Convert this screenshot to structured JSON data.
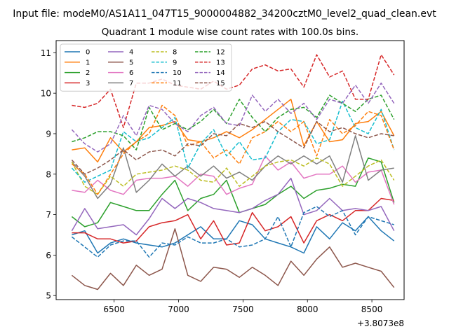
{
  "chart_data": {
    "type": "line",
    "suptitle": "Input file: modeM0/AS1A11_047T15_9000004882_34200cztM0_level2_quad_clean.evt",
    "title": "Quadrant 1 module wise count rates with 100.0s bins.",
    "xlabel": "",
    "ylabel": "",
    "x_offset_label": "+3.8073e8",
    "xlim": [
      6050,
      8750
    ],
    "ylim": [
      4.9,
      11.3
    ],
    "xticks": [
      6500,
      7000,
      7500,
      8000,
      8500
    ],
    "yticks": [
      5,
      6,
      7,
      8,
      9,
      10,
      11
    ],
    "grid": false,
    "legend_position": "top-left",
    "legend_columns": 4,
    "x": [
      6172,
      6272,
      6372,
      6472,
      6572,
      6672,
      6772,
      6872,
      6972,
      7072,
      7172,
      7272,
      7372,
      7472,
      7572,
      7672,
      7772,
      7872,
      7972,
      8072,
      8172,
      8272,
      8372,
      8472,
      8572,
      8672
    ],
    "series": [
      {
        "name": "0",
        "color": "#1f77b4",
        "dash": "solid",
        "values": [
          6.5,
          6.6,
          6.05,
          6.3,
          6.4,
          6.3,
          6.25,
          6.2,
          6.3,
          6.5,
          6.7,
          6.4,
          6.4,
          6.85,
          6.75,
          6.4,
          6.3,
          6.2,
          6.05,
          6.7,
          6.4,
          6.8,
          6.6,
          6.95,
          6.6,
          6.35
        ]
      },
      {
        "name": "1",
        "color": "#ff7f0e",
        "dash": "solid",
        "values": [
          8.6,
          8.65,
          8.3,
          8.9,
          8.55,
          8.8,
          9.15,
          9.2,
          9.3,
          8.85,
          8.8,
          8.9,
          9.05,
          8.9,
          9.1,
          9.35,
          9.6,
          9.85,
          8.7,
          9.3,
          8.8,
          8.85,
          9.25,
          9.3,
          9.55,
          8.95
        ]
      },
      {
        "name": "2",
        "color": "#2ca02c",
        "dash": "solid",
        "values": [
          6.95,
          6.7,
          6.8,
          7.3,
          7.2,
          7.1,
          7.1,
          7.5,
          7.85,
          7.1,
          7.4,
          7.5,
          7.85,
          7.05,
          7.15,
          7.25,
          7.5,
          7.7,
          7.4,
          7.6,
          7.65,
          7.75,
          7.7,
          8.4,
          8.3,
          7.3
        ]
      },
      {
        "name": "3",
        "color": "#d62728",
        "dash": "solid",
        "values": [
          6.55,
          6.55,
          6.4,
          6.4,
          6.3,
          6.35,
          6.7,
          6.8,
          6.85,
          7.0,
          6.4,
          6.85,
          6.25,
          6.3,
          7.05,
          6.6,
          6.7,
          6.95,
          6.3,
          6.85,
          7.0,
          6.85,
          7.1,
          7.1,
          7.4,
          7.35
        ]
      },
      {
        "name": "4",
        "color": "#9467bd",
        "dash": "solid",
        "values": [
          6.6,
          7.15,
          6.65,
          6.7,
          6.75,
          6.5,
          6.9,
          7.4,
          7.15,
          7.4,
          7.3,
          7.15,
          7.1,
          7.05,
          7.15,
          7.35,
          7.5,
          7.9,
          7.0,
          7.1,
          7.4,
          7.1,
          7.15,
          7.1,
          7.2,
          6.6
        ]
      },
      {
        "name": "5",
        "color": "#8c564b",
        "dash": "solid",
        "values": [
          5.5,
          5.25,
          5.15,
          5.55,
          5.25,
          5.75,
          5.5,
          5.65,
          6.65,
          5.5,
          5.35,
          5.7,
          5.65,
          5.45,
          5.7,
          5.5,
          5.25,
          5.85,
          5.5,
          5.9,
          6.2,
          5.7,
          5.8,
          5.7,
          5.6,
          5.2
        ]
      },
      {
        "name": "6",
        "color": "#e377c2",
        "dash": "solid",
        "values": [
          7.6,
          7.55,
          7.85,
          7.6,
          7.5,
          7.85,
          7.9,
          7.9,
          7.95,
          7.7,
          8.0,
          7.95,
          7.5,
          7.65,
          7.75,
          8.45,
          8.1,
          8.3,
          7.9,
          8.0,
          8.0,
          8.2,
          7.8,
          8.05,
          8.1,
          7.25
        ]
      },
      {
        "name": "7",
        "color": "#7f7f7f",
        "dash": "solid",
        "values": [
          8.3,
          7.95,
          7.4,
          7.75,
          8.65,
          7.55,
          7.85,
          8.25,
          7.95,
          8.2,
          7.95,
          8.2,
          7.9,
          8.05,
          7.85,
          8.2,
          8.45,
          8.25,
          8.45,
          8.25,
          8.45,
          7.8,
          8.95,
          7.85,
          8.1,
          8.15
        ]
      },
      {
        "name": "8",
        "color": "#bcbd22",
        "dash": "dashed",
        "values": [
          8.3,
          7.7,
          7.5,
          7.95,
          7.7,
          8.0,
          8.05,
          8.1,
          8.2,
          8.1,
          7.85,
          7.8,
          8.15,
          7.7,
          7.95,
          8.2,
          8.3,
          8.35,
          8.2,
          8.4,
          8.25,
          7.7,
          7.95,
          8.2,
          8.35,
          7.85
        ]
      },
      {
        "name": "9",
        "color": "#17becf",
        "dash": "dashed",
        "values": [
          8.15,
          7.8,
          7.95,
          8.1,
          9.05,
          8.8,
          8.9,
          9.15,
          9.4,
          8.15,
          8.75,
          9.1,
          8.45,
          8.8,
          8.35,
          8.4,
          9.05,
          9.35,
          9.3,
          8.75,
          8.85,
          9.8,
          9.15,
          9.0,
          9.6,
          8.6
        ]
      },
      {
        "name": "10",
        "color": "#1f77b4",
        "dash": "dashed",
        "values": [
          6.45,
          6.2,
          5.95,
          6.25,
          6.35,
          6.35,
          5.95,
          6.3,
          6.25,
          6.45,
          6.3,
          6.3,
          6.4,
          6.2,
          6.25,
          6.4,
          6.95,
          6.2,
          7.05,
          7.2,
          6.95,
          7.1,
          6.5,
          6.95,
          6.85,
          6.75
        ]
      },
      {
        "name": "11",
        "color": "#ff7f0e",
        "dash": "dashed",
        "values": [
          8.25,
          8.0,
          7.5,
          8.0,
          8.5,
          8.8,
          9.0,
          9.7,
          9.45,
          8.7,
          8.8,
          8.4,
          8.6,
          8.25,
          8.9,
          9.05,
          9.3,
          9.05,
          9.3,
          8.45,
          9.35,
          9.0,
          9.2,
          9.55,
          9.45,
          8.6
        ]
      },
      {
        "name": "12",
        "color": "#2ca02c",
        "dash": "dashed",
        "values": [
          8.8,
          8.9,
          9.05,
          9.05,
          8.95,
          8.6,
          9.65,
          9.1,
          9.25,
          9.1,
          9.3,
          9.6,
          9.25,
          9.85,
          9.4,
          9.05,
          9.4,
          9.6,
          9.65,
          9.4,
          9.95,
          9.75,
          9.55,
          9.85,
          9.95,
          9.35
        ]
      },
      {
        "name": "13",
        "color": "#d62728",
        "dash": "dashed",
        "values": [
          9.7,
          9.65,
          9.75,
          10.1,
          9.15,
          10.25,
          10.25,
          10.35,
          10.2,
          10.15,
          10.1,
          10.3,
          10.1,
          10.2,
          10.6,
          10.7,
          10.55,
          10.6,
          10.15,
          10.95,
          10.4,
          10.55,
          9.85,
          9.85,
          10.95,
          10.45
        ]
      },
      {
        "name": "14",
        "color": "#9467bd",
        "dash": "dashed",
        "values": [
          9.1,
          8.75,
          8.55,
          8.75,
          9.45,
          8.95,
          9.7,
          9.6,
          9.25,
          9.05,
          9.45,
          9.65,
          9.25,
          9.2,
          9.95,
          9.55,
          9.85,
          9.5,
          9.75,
          9.35,
          9.85,
          9.75,
          10.2,
          9.75,
          10.25,
          9.75
        ]
      },
      {
        "name": "15",
        "color": "#8c564b",
        "dash": "dashed",
        "values": [
          8.35,
          8.0,
          8.15,
          8.35,
          8.6,
          8.35,
          8.55,
          8.6,
          8.45,
          8.75,
          8.7,
          9.0,
          8.95,
          9.25,
          9.15,
          9.3,
          9.05,
          8.85,
          8.65,
          9.3,
          9.05,
          9.15,
          9.0,
          8.9,
          9.0,
          8.95
        ]
      }
    ]
  }
}
